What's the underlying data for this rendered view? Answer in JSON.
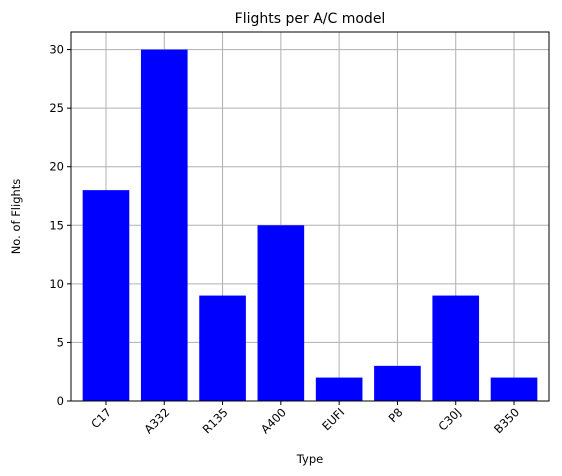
{
  "chart_data": {
    "type": "bar",
    "title": "Flights per A/C model",
    "xlabel": "Type",
    "ylabel": "No. of Flights",
    "categories": [
      "C17",
      "A332",
      "R135",
      "A400",
      "EUFI",
      "P8",
      "C30J",
      "B350"
    ],
    "values": [
      18,
      30,
      9,
      15,
      2,
      3,
      9,
      2
    ],
    "ylim": [
      0,
      31.5
    ],
    "yticks": [
      0,
      5,
      10,
      15,
      20,
      25,
      30
    ],
    "grid": true,
    "bar_color": "#0000ff",
    "grid_color": "#b0b0b0"
  }
}
